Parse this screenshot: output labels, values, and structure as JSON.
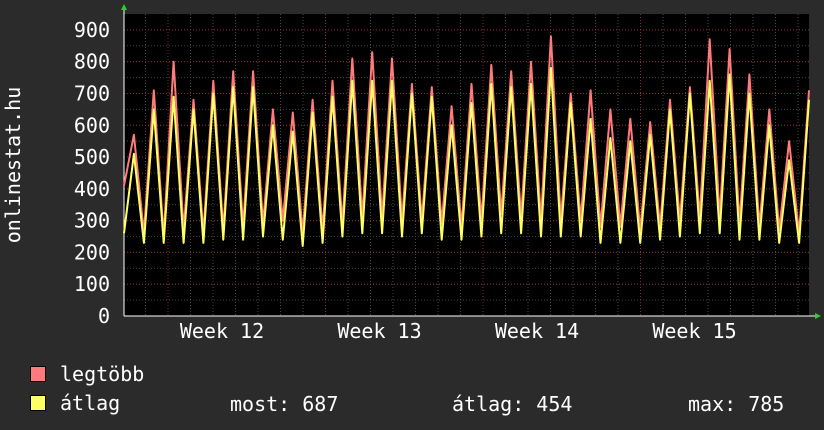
{
  "chart_data": {
    "type": "line",
    "ylabel": "onlinestat.hu",
    "ylim": [
      0,
      950
    ],
    "yticks": [
      0,
      100,
      200,
      300,
      400,
      500,
      600,
      700,
      800,
      900
    ],
    "xticks": [
      "Week 12",
      "Week 13",
      "Week 14",
      "Week 15"
    ],
    "grid": true,
    "series": [
      {
        "name": "legtöbb",
        "color": "#ff7a7a",
        "values": [
          410,
          570,
          260,
          710,
          250,
          800,
          270,
          680,
          260,
          740,
          270,
          770,
          280,
          770,
          290,
          650,
          300,
          640,
          260,
          680,
          270,
          740,
          290,
          810,
          310,
          830,
          310,
          810,
          300,
          730,
          300,
          720,
          290,
          660,
          280,
          730,
          300,
          790,
          320,
          770,
          310,
          800,
          300,
          880,
          300,
          700,
          300,
          710,
          280,
          650,
          280,
          620,
          270,
          610,
          280,
          680,
          300,
          720,
          310,
          870,
          310,
          840,
          290,
          760,
          280,
          650,
          270,
          550,
          260,
          710
        ]
      },
      {
        "name": "átlag",
        "color": "#ffff66",
        "values": [
          260,
          510,
          230,
          650,
          230,
          690,
          230,
          650,
          230,
          700,
          240,
          720,
          240,
          720,
          250,
          600,
          240,
          580,
          220,
          640,
          230,
          690,
          250,
          740,
          260,
          740,
          260,
          740,
          250,
          700,
          260,
          690,
          240,
          600,
          240,
          670,
          250,
          730,
          260,
          720,
          260,
          730,
          250,
          780,
          250,
          670,
          250,
          620,
          230,
          560,
          230,
          550,
          230,
          570,
          240,
          650,
          250,
          700,
          260,
          740,
          260,
          760,
          240,
          700,
          240,
          600,
          230,
          490,
          230,
          680
        ]
      }
    ]
  },
  "legend": {
    "items": [
      {
        "label": "legtöbb",
        "color": "#ff7a7a"
      },
      {
        "label": "átlag",
        "color": "#ffff66"
      }
    ],
    "stats": {
      "most": "most: 687",
      "atlag": "átlag: 454",
      "max": "max: 785"
    }
  }
}
